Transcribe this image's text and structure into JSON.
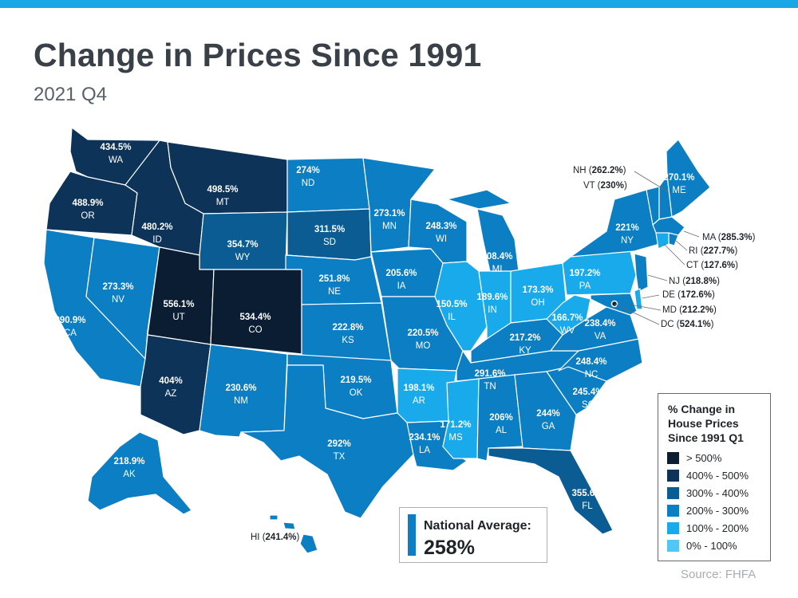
{
  "header": {
    "title": "Change in Prices Since 1991",
    "subtitle": "2021 Q4"
  },
  "colors": {
    "gt500": "#0b1d33",
    "r400_500": "#0e3359",
    "r300_400": "#0a5c93",
    "r200_300": "#0b7ec4",
    "r100_200": "#19aaec",
    "r0_100": "#52c7f4",
    "topbar": "#1aa7e6",
    "border": "#ffffff"
  },
  "legend": {
    "title_lines": [
      "% Change in",
      "House Prices",
      "Since 1991 Q1"
    ],
    "items": [
      {
        "label": "> 500%",
        "color": "#0b1d33"
      },
      {
        "label": "400% - 500%",
        "color": "#0e3359"
      },
      {
        "label": "300% - 400%",
        "color": "#0a5c93"
      },
      {
        "label": "200% - 300%",
        "color": "#0b7ec4"
      },
      {
        "label": "100% - 200%",
        "color": "#19aaec"
      },
      {
        "label": "0% - 100%",
        "color": "#52c7f4"
      }
    ]
  },
  "national_average": {
    "label": "National Average:",
    "value": "258%"
  },
  "source": "Source: FHFA",
  "states": [
    {
      "code": "WA",
      "value": "434.5%"
    },
    {
      "code": "OR",
      "value": "488.9%"
    },
    {
      "code": "CA",
      "value": "290.9%"
    },
    {
      "code": "NV",
      "value": "273.3%"
    },
    {
      "code": "ID",
      "value": "480.2%"
    },
    {
      "code": "MT",
      "value": "498.5%"
    },
    {
      "code": "WY",
      "value": "354.7%"
    },
    {
      "code": "UT",
      "value": "556.1%"
    },
    {
      "code": "CO",
      "value": "534.4%"
    },
    {
      "code": "AZ",
      "value": "404%"
    },
    {
      "code": "NM",
      "value": "230.6%"
    },
    {
      "code": "ND",
      "value": "274%"
    },
    {
      "code": "SD",
      "value": "311.5%"
    },
    {
      "code": "NE",
      "value": "251.8%"
    },
    {
      "code": "KS",
      "value": "222.8%"
    },
    {
      "code": "OK",
      "value": "219.5%"
    },
    {
      "code": "TX",
      "value": "292%"
    },
    {
      "code": "MN",
      "value": "273.1%"
    },
    {
      "code": "IA",
      "value": "205.6%"
    },
    {
      "code": "MO",
      "value": "220.5%"
    },
    {
      "code": "AR",
      "value": "198.1%"
    },
    {
      "code": "LA",
      "value": "234.1%"
    },
    {
      "code": "WI",
      "value": "248.3%"
    },
    {
      "code": "IL",
      "value": "150.5%"
    },
    {
      "code": "MI",
      "value": "208.4%"
    },
    {
      "code": "IN",
      "value": "189.6%"
    },
    {
      "code": "OH",
      "value": "173.3%"
    },
    {
      "code": "KY",
      "value": "217.2%"
    },
    {
      "code": "TN",
      "value": "291.6%"
    },
    {
      "code": "MS",
      "value": "171.2%"
    },
    {
      "code": "AL",
      "value": "206%"
    },
    {
      "code": "GA",
      "value": "244%"
    },
    {
      "code": "FL",
      "value": "355.6%"
    },
    {
      "code": "SC",
      "value": "245.4%"
    },
    {
      "code": "NC",
      "value": "248.4%"
    },
    {
      "code": "VA",
      "value": "238.4%"
    },
    {
      "code": "WV",
      "value": "166.7%"
    },
    {
      "code": "PA",
      "value": "197.2%"
    },
    {
      "code": "NY",
      "value": "221%"
    },
    {
      "code": "ME",
      "value": "270.1%"
    },
    {
      "code": "AK",
      "value": "218.9%"
    }
  ],
  "callouts": [
    {
      "code": "NH",
      "value": "262.2%"
    },
    {
      "code": "VT",
      "value": "230%"
    },
    {
      "code": "MA",
      "value": "285.3%"
    },
    {
      "code": "RI",
      "value": "227.7%"
    },
    {
      "code": "CT",
      "value": "127.6%"
    },
    {
      "code": "NJ",
      "value": "218.8%"
    },
    {
      "code": "DE",
      "value": "172.6%"
    },
    {
      "code": "MD",
      "value": "212.2%"
    },
    {
      "code": "DC",
      "value": "524.1%"
    },
    {
      "code": "HI",
      "value": "241.4%"
    }
  ]
}
